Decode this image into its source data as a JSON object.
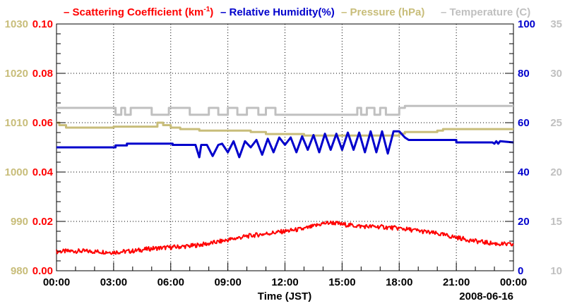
{
  "chart_data": {
    "type": "line",
    "legend": {
      "position": "top",
      "entries": [
        {
          "marker": "–",
          "label": "Scattering Coefficient (km",
          "sup": "-1",
          "tail": ")",
          "color": "#ff0000"
        },
        {
          "marker": "–",
          "label": "Relative Humidity(%)",
          "sup": "",
          "tail": "",
          "color": "#0000cc"
        },
        {
          "marker": "–",
          "label": "Pressure (hPa)",
          "sup": "",
          "tail": "",
          "color": "#c8bd7a"
        },
        {
          "marker": "–",
          "label": "Temperature (C)",
          "sup": "",
          "tail": "",
          "color": "#c0c0c0"
        }
      ]
    },
    "x_axis": {
      "label": "Time (JST)",
      "date_label": "2008-06-16",
      "range_hours": [
        0,
        24
      ],
      "ticks": [
        "00:00",
        "03:00",
        "06:00",
        "09:00",
        "12:00",
        "15:00",
        "18:00",
        "21:00",
        "00:00"
      ],
      "grid": true
    },
    "axes": {
      "pressure": {
        "side": "left-outer",
        "color": "#c8bd7a",
        "range": [
          980,
          1030
        ],
        "ticks": [
          "980",
          "990",
          "1000",
          "1010",
          "1020",
          "1030"
        ]
      },
      "scattering": {
        "side": "left-inner",
        "color": "#ff0000",
        "range": [
          0,
          0.1
        ],
        "ticks": [
          "0.00",
          "0.02",
          "0.04",
          "0.06",
          "0.08",
          "0.10"
        ]
      },
      "humidity": {
        "side": "right-inner",
        "color": "#0000cc",
        "range": [
          0,
          100
        ],
        "ticks": [
          "0",
          "20",
          "40",
          "60",
          "80",
          "100"
        ]
      },
      "temperature": {
        "side": "right-outer",
        "color": "#c0c0c0",
        "range": [
          10,
          35
        ],
        "ticks": [
          "10",
          "15",
          "20",
          "25",
          "30",
          "35"
        ]
      }
    },
    "series": [
      {
        "name": "Temperature",
        "axis": "temperature",
        "color": "#c0c0c0",
        "x": [
          0,
          3.1,
          3.1,
          3.4,
          3.4,
          3.6,
          3.6,
          3.9,
          3.9,
          5.0,
          5.0,
          5.9,
          5.9,
          7.0,
          7.0,
          8.0,
          8.0,
          8.5,
          8.5,
          9.0,
          9.0,
          9.5,
          9.5,
          10.0,
          10.0,
          10.6,
          10.6,
          11.0,
          11.0,
          11.5,
          11.5,
          12.0,
          12.0,
          15.8,
          15.8,
          16.0,
          16.0,
          16.3,
          16.3,
          16.7,
          16.7,
          17.0,
          17.0,
          17.3,
          17.3,
          18.0,
          18.0,
          18.3,
          18.3,
          24
        ],
        "y": [
          26.5,
          26.5,
          25.8,
          25.8,
          26.5,
          26.5,
          25.8,
          25.8,
          26.5,
          26.5,
          25.8,
          25.8,
          26.5,
          26.5,
          25.8,
          25.8,
          26.5,
          26.5,
          25.8,
          25.8,
          26.5,
          26.5,
          25.8,
          25.8,
          26.5,
          26.5,
          25.8,
          25.8,
          26.5,
          26.5,
          25.8,
          25.8,
          25.8,
          25.8,
          26.5,
          26.5,
          25.8,
          25.8,
          26.5,
          26.5,
          25.8,
          25.8,
          26.5,
          26.5,
          25.8,
          25.8,
          26.5,
          26.5,
          26.7,
          26.7
        ]
      },
      {
        "name": "Pressure",
        "axis": "pressure",
        "color": "#c8bd7a",
        "x": [
          0,
          0.15,
          0.15,
          0.5,
          0.5,
          3.0,
          3.0,
          5.3,
          5.3,
          5.6,
          5.6,
          6.0,
          6.0,
          6.5,
          6.5,
          7.5,
          7.5,
          10.2,
          10.2,
          11.0,
          11.0,
          13.0,
          13.0,
          18.0,
          18.0,
          18.3,
          18.3,
          20.0,
          20.0,
          20.3,
          20.3,
          24
        ],
        "y": [
          1010,
          1010,
          1009.5,
          1009.5,
          1009,
          1009,
          1009.2,
          1009.2,
          1010,
          1010,
          1009.5,
          1009.5,
          1009,
          1009,
          1008.7,
          1008.7,
          1008.4,
          1008.4,
          1008.1,
          1008.1,
          1007.7,
          1007.7,
          1007.4,
          1007.4,
          1007.8,
          1007.8,
          1008.1,
          1008.1,
          1008.4,
          1008.4,
          1008.7,
          1008.7
        ]
      },
      {
        "name": "Relative Humidity",
        "axis": "humidity",
        "color": "#0000cc",
        "x": [
          0,
          3.1,
          3.1,
          3.7,
          3.7,
          6.1,
          6.1,
          7.3,
          7.5,
          7.6,
          7.9,
          8.2,
          8.5,
          8.7,
          9.0,
          9.3,
          9.6,
          9.9,
          10.2,
          10.5,
          10.8,
          11.1,
          11.4,
          11.7,
          12.0,
          12.3,
          12.6,
          12.9,
          13.2,
          13.5,
          13.8,
          14.1,
          14.4,
          14.7,
          15.0,
          15.3,
          15.6,
          15.9,
          16.2,
          16.5,
          16.8,
          17.1,
          17.4,
          17.7,
          18.0,
          18.3,
          18.5,
          18.7,
          21.0,
          21.0,
          22.9,
          23.0,
          23.1,
          23.2,
          23.3,
          24
        ],
        "y": [
          50,
          50,
          50.8,
          50.8,
          51.5,
          51.5,
          51,
          51,
          46,
          51,
          51,
          46.5,
          51,
          51.5,
          48,
          52.5,
          46,
          52.5,
          50,
          53,
          47,
          53.5,
          48,
          54,
          51,
          54,
          48,
          54.5,
          49,
          55,
          48,
          55.5,
          49,
          55.5,
          49,
          56,
          49,
          56,
          48,
          56.5,
          48,
          56.5,
          47.5,
          56.5,
          56.5,
          54,
          53,
          53,
          53,
          52,
          52,
          51.5,
          52.5,
          51.5,
          52.5,
          52
        ]
      },
      {
        "name": "Scattering Coefficient",
        "axis": "scattering",
        "color": "#ff0000",
        "x": [
          0,
          1,
          2,
          3,
          4,
          5,
          6,
          7,
          8,
          9,
          10,
          11,
          12,
          12.5,
          13,
          13.5,
          14,
          14.5,
          15,
          16,
          17,
          18,
          19,
          20,
          21,
          22,
          23,
          24
        ],
        "y": [
          0.0078,
          0.008,
          0.0078,
          0.0075,
          0.008,
          0.009,
          0.0095,
          0.01,
          0.011,
          0.0125,
          0.014,
          0.015,
          0.016,
          0.0165,
          0.017,
          0.018,
          0.0192,
          0.0195,
          0.0188,
          0.018,
          0.0178,
          0.0172,
          0.0162,
          0.015,
          0.0135,
          0.012,
          0.011,
          0.0105
        ]
      }
    ]
  }
}
